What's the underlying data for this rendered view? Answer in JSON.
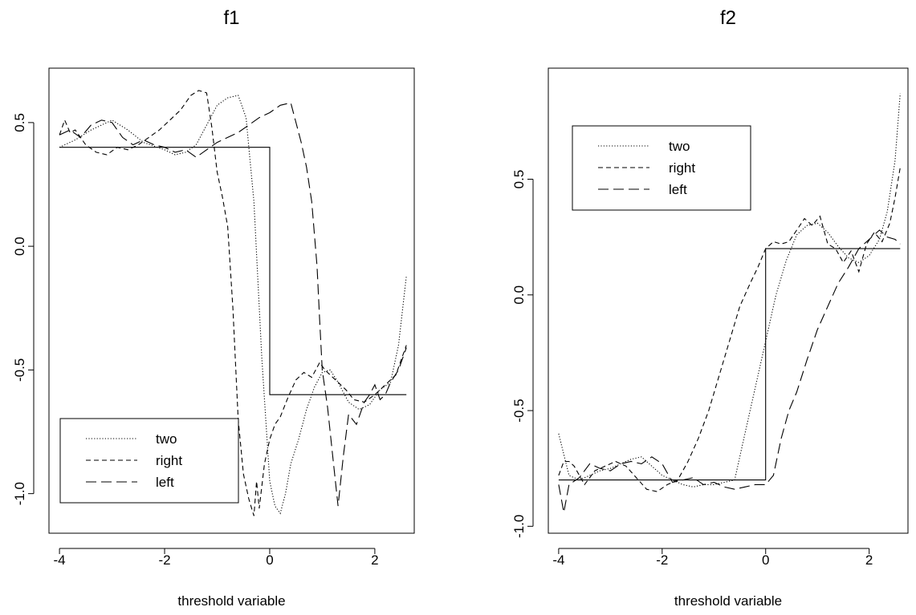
{
  "chart_data": [
    {
      "type": "line",
      "title": "f1",
      "xlabel": "threshold variable",
      "ylabel": "",
      "xlim": [
        -4.2,
        2.75
      ],
      "ylim": [
        -1.16,
        0.72
      ],
      "xticks": [
        "-4",
        "-2",
        "0",
        "2"
      ],
      "yticks": [
        "-1.0",
        "-0.5",
        "0.0",
        "0.5"
      ],
      "legend": {
        "position": "bottom-left",
        "entries": [
          "two",
          "right",
          "left"
        ]
      },
      "series": [
        {
          "name": "true",
          "style": "solid",
          "x": [
            -4,
            0,
            0,
            2.6
          ],
          "y": [
            0.4,
            0.4,
            -0.6,
            -0.6
          ]
        },
        {
          "name": "two",
          "style": "dotted",
          "x": [
            -4.0,
            -3.7,
            -3.4,
            -3.0,
            -2.7,
            -2.4,
            -2.0,
            -1.8,
            -1.6,
            -1.4,
            -1.2,
            -1.0,
            -0.8,
            -0.6,
            -0.45,
            -0.3,
            -0.15,
            0.0,
            0.1,
            0.2,
            0.3,
            0.4,
            0.55,
            0.7,
            0.85,
            1.0,
            1.15,
            1.3,
            1.5,
            1.7,
            1.9,
            2.1,
            2.3,
            2.45,
            2.6
          ],
          "y": [
            0.4,
            0.43,
            0.47,
            0.51,
            0.47,
            0.42,
            0.39,
            0.37,
            0.38,
            0.41,
            0.49,
            0.57,
            0.6,
            0.61,
            0.52,
            0.18,
            -0.45,
            -0.95,
            -1.05,
            -1.08,
            -1.0,
            -0.88,
            -0.78,
            -0.66,
            -0.57,
            -0.51,
            -0.5,
            -0.55,
            -0.63,
            -0.66,
            -0.64,
            -0.58,
            -0.55,
            -0.4,
            -0.12
          ]
        },
        {
          "name": "right",
          "style": "dashed",
          "x": [
            -4.0,
            -3.9,
            -3.8,
            -3.7,
            -3.5,
            -3.3,
            -3.1,
            -2.9,
            -2.7,
            -2.5,
            -2.3,
            -2.1,
            -1.9,
            -1.7,
            -1.5,
            -1.35,
            -1.2,
            -1.1,
            -1.0,
            -0.9,
            -0.8,
            -0.7,
            -0.6,
            -0.5,
            -0.4,
            -0.3,
            -0.25,
            -0.2,
            -0.1,
            0.0,
            0.1,
            0.2,
            0.35,
            0.5,
            0.65,
            0.8,
            0.95,
            1.05,
            1.15,
            1.3,
            1.45,
            1.6,
            1.8,
            2.0,
            2.2,
            2.4,
            2.6
          ],
          "y": [
            0.45,
            0.51,
            0.46,
            0.47,
            0.41,
            0.38,
            0.37,
            0.4,
            0.39,
            0.41,
            0.44,
            0.47,
            0.51,
            0.55,
            0.61,
            0.63,
            0.62,
            0.48,
            0.3,
            0.2,
            0.08,
            -0.25,
            -0.7,
            -0.92,
            -1.02,
            -1.09,
            -0.95,
            -1.06,
            -0.88,
            -0.78,
            -0.72,
            -0.69,
            -0.61,
            -0.54,
            -0.51,
            -0.53,
            -0.47,
            -0.5,
            -0.52,
            -0.55,
            -0.58,
            -0.62,
            -0.63,
            -0.6,
            -0.56,
            -0.52,
            -0.4
          ]
        },
        {
          "name": "left",
          "style": "longdash",
          "x": [
            -4.0,
            -3.8,
            -3.6,
            -3.4,
            -3.2,
            -3.0,
            -2.8,
            -2.6,
            -2.4,
            -2.2,
            -2.0,
            -1.8,
            -1.6,
            -1.4,
            -1.2,
            -1.0,
            -0.8,
            -0.6,
            -0.4,
            -0.2,
            0.0,
            0.2,
            0.4,
            0.5,
            0.6,
            0.7,
            0.8,
            0.9,
            0.95,
            1.0,
            1.1,
            1.2,
            1.3,
            1.4,
            1.5,
            1.65,
            1.8,
            1.9,
            2.0,
            2.1,
            2.2,
            2.3,
            2.45,
            2.6
          ],
          "y": [
            0.45,
            0.47,
            0.44,
            0.49,
            0.51,
            0.5,
            0.44,
            0.41,
            0.43,
            0.41,
            0.4,
            0.38,
            0.39,
            0.36,
            0.39,
            0.42,
            0.44,
            0.46,
            0.49,
            0.52,
            0.54,
            0.57,
            0.58,
            0.5,
            0.42,
            0.32,
            0.18,
            -0.08,
            -0.3,
            -0.5,
            -0.65,
            -0.85,
            -1.05,
            -0.85,
            -0.68,
            -0.72,
            -0.63,
            -0.6,
            -0.56,
            -0.62,
            -0.6,
            -0.55,
            -0.5,
            -0.41
          ]
        }
      ]
    },
    {
      "type": "line",
      "title": "f2",
      "xlabel": "threshold variable",
      "ylabel": "",
      "xlim": [
        -4.2,
        2.75
      ],
      "ylim": [
        -1.03,
        0.98
      ],
      "xticks": [
        "-4",
        "-2",
        "0",
        "2"
      ],
      "yticks": [
        "-1.0",
        "-0.5",
        "0.0",
        "0.5"
      ],
      "legend": {
        "position": "top-left",
        "entries": [
          "two",
          "right",
          "left"
        ]
      },
      "series": [
        {
          "name": "true",
          "style": "solid",
          "x": [
            -4,
            0,
            0,
            2.6
          ],
          "y": [
            -0.8,
            -0.8,
            0.2,
            0.2
          ]
        },
        {
          "name": "two",
          "style": "dotted",
          "x": [
            -4.0,
            -3.8,
            -3.6,
            -3.4,
            -3.2,
            -3.0,
            -2.8,
            -2.6,
            -2.4,
            -2.2,
            -2.0,
            -1.8,
            -1.6,
            -1.4,
            -1.2,
            -1.0,
            -0.8,
            -0.6,
            -0.4,
            -0.2,
            0.0,
            0.2,
            0.4,
            0.6,
            0.8,
            1.0,
            1.2,
            1.4,
            1.6,
            1.8,
            2.0,
            2.2,
            2.35,
            2.5,
            2.6
          ],
          "y": [
            -0.6,
            -0.78,
            -0.8,
            -0.78,
            -0.76,
            -0.75,
            -0.73,
            -0.71,
            -0.7,
            -0.74,
            -0.78,
            -0.8,
            -0.82,
            -0.83,
            -0.82,
            -0.82,
            -0.81,
            -0.8,
            -0.6,
            -0.4,
            -0.2,
            0.0,
            0.15,
            0.26,
            0.3,
            0.31,
            0.27,
            0.21,
            0.16,
            0.14,
            0.17,
            0.24,
            0.36,
            0.58,
            0.87
          ]
        },
        {
          "name": "right",
          "style": "dashed",
          "x": [
            -4.0,
            -3.9,
            -3.8,
            -3.7,
            -3.5,
            -3.3,
            -3.1,
            -2.9,
            -2.7,
            -2.5,
            -2.3,
            -2.1,
            -1.9,
            -1.7,
            -1.5,
            -1.3,
            -1.1,
            -0.9,
            -0.7,
            -0.5,
            -0.3,
            -0.15,
            0.0,
            0.15,
            0.3,
            0.45,
            0.6,
            0.75,
            0.9,
            1.05,
            1.2,
            1.35,
            1.5,
            1.65,
            1.8,
            1.95,
            2.1,
            2.25,
            2.4,
            2.5,
            2.6
          ],
          "y": [
            -0.78,
            -0.72,
            -0.72,
            -0.74,
            -0.82,
            -0.76,
            -0.74,
            -0.72,
            -0.74,
            -0.79,
            -0.84,
            -0.85,
            -0.82,
            -0.8,
            -0.72,
            -0.62,
            -0.5,
            -0.35,
            -0.2,
            -0.05,
            0.05,
            0.12,
            0.2,
            0.23,
            0.22,
            0.23,
            0.28,
            0.33,
            0.3,
            0.34,
            0.22,
            0.2,
            0.14,
            0.19,
            0.1,
            0.22,
            0.27,
            0.23,
            0.31,
            0.42,
            0.55
          ]
        },
        {
          "name": "left",
          "style": "longdash",
          "x": [
            -4.0,
            -3.9,
            -3.8,
            -3.6,
            -3.4,
            -3.2,
            -3.0,
            -2.8,
            -2.6,
            -2.4,
            -2.2,
            -2.0,
            -1.8,
            -1.6,
            -1.4,
            -1.2,
            -1.0,
            -0.8,
            -0.6,
            -0.4,
            -0.2,
            0.0,
            0.15,
            0.3,
            0.45,
            0.6,
            0.8,
            1.0,
            1.2,
            1.4,
            1.6,
            1.8,
            2.0,
            2.2,
            2.35,
            2.5,
            2.6
          ],
          "y": [
            -0.82,
            -0.94,
            -0.82,
            -0.79,
            -0.73,
            -0.75,
            -0.76,
            -0.73,
            -0.72,
            -0.73,
            -0.7,
            -0.73,
            -0.81,
            -0.8,
            -0.79,
            -0.82,
            -0.81,
            -0.83,
            -0.84,
            -0.83,
            -0.82,
            -0.82,
            -0.78,
            -0.62,
            -0.5,
            -0.42,
            -0.28,
            -0.15,
            -0.05,
            0.05,
            0.12,
            0.2,
            0.24,
            0.28,
            0.25,
            0.24,
            0.22
          ]
        }
      ]
    }
  ]
}
